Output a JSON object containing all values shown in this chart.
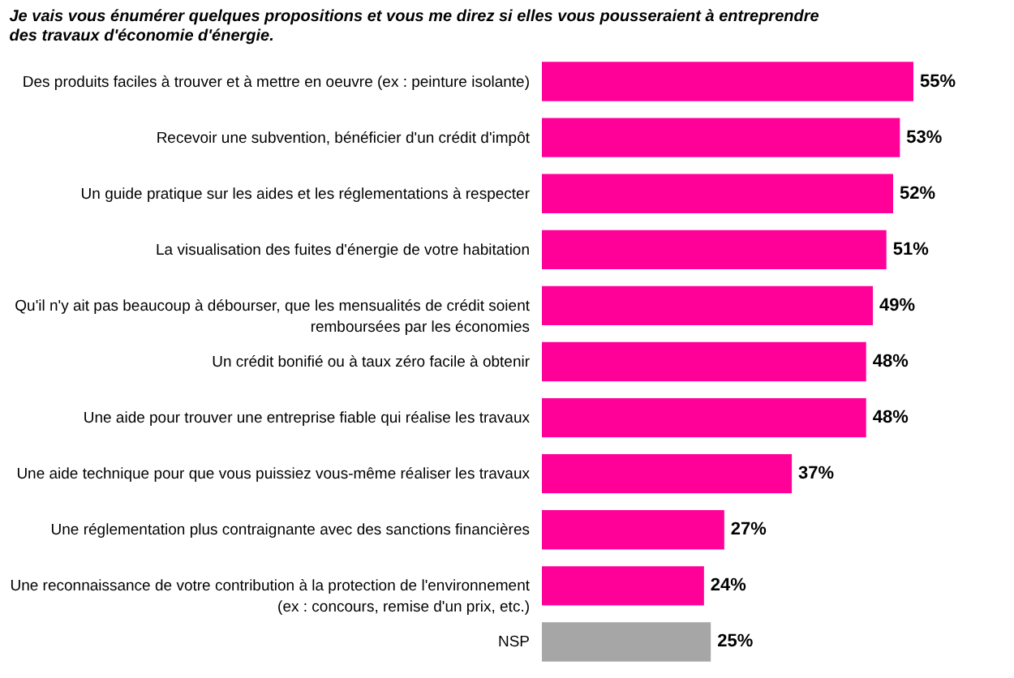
{
  "chart_data": {
    "type": "bar",
    "orientation": "horizontal",
    "title": "Je vais vous énumérer quelques propositions et vous me direz si elles vous pousseraient à entreprendre des travaux d'économie d'énergie.",
    "categories": [
      "Des produits faciles à trouver et à mettre en oeuvre (ex : peinture isolante)",
      "Recevoir une subvention, bénéficier d'un crédit d'impôt",
      "Un guide pratique sur les aides et les réglementations à respecter",
      "La visualisation des fuites d'énergie de votre habitation",
      "Qu'il n'y ait pas beaucoup à débourser, que les mensualités de crédit soient\nremboursées par les économies",
      "Un crédit bonifié ou à taux zéro facile à obtenir",
      "Une aide pour trouver une entreprise fiable qui réalise les travaux",
      "Une aide technique pour que vous puissiez vous-même réaliser les travaux",
      "Une réglementation plus contraignante avec des sanctions financières",
      "Une reconnaissance de votre contribution à la protection de l'environnement\n(ex : concours, remise d'un prix, etc.)",
      "NSP"
    ],
    "values": [
      55,
      53,
      52,
      51,
      49,
      48,
      48,
      37,
      27,
      24,
      25
    ],
    "value_labels": [
      "55%",
      "53%",
      "52%",
      "51%",
      "49%",
      "48%",
      "48%",
      "37%",
      "27%",
      "24%",
      "25%"
    ],
    "colors": [
      "#ff0099",
      "#ff0099",
      "#ff0099",
      "#ff0099",
      "#ff0099",
      "#ff0099",
      "#ff0099",
      "#ff0099",
      "#ff0099",
      "#ff0099",
      "#a6a6a6"
    ]
  }
}
